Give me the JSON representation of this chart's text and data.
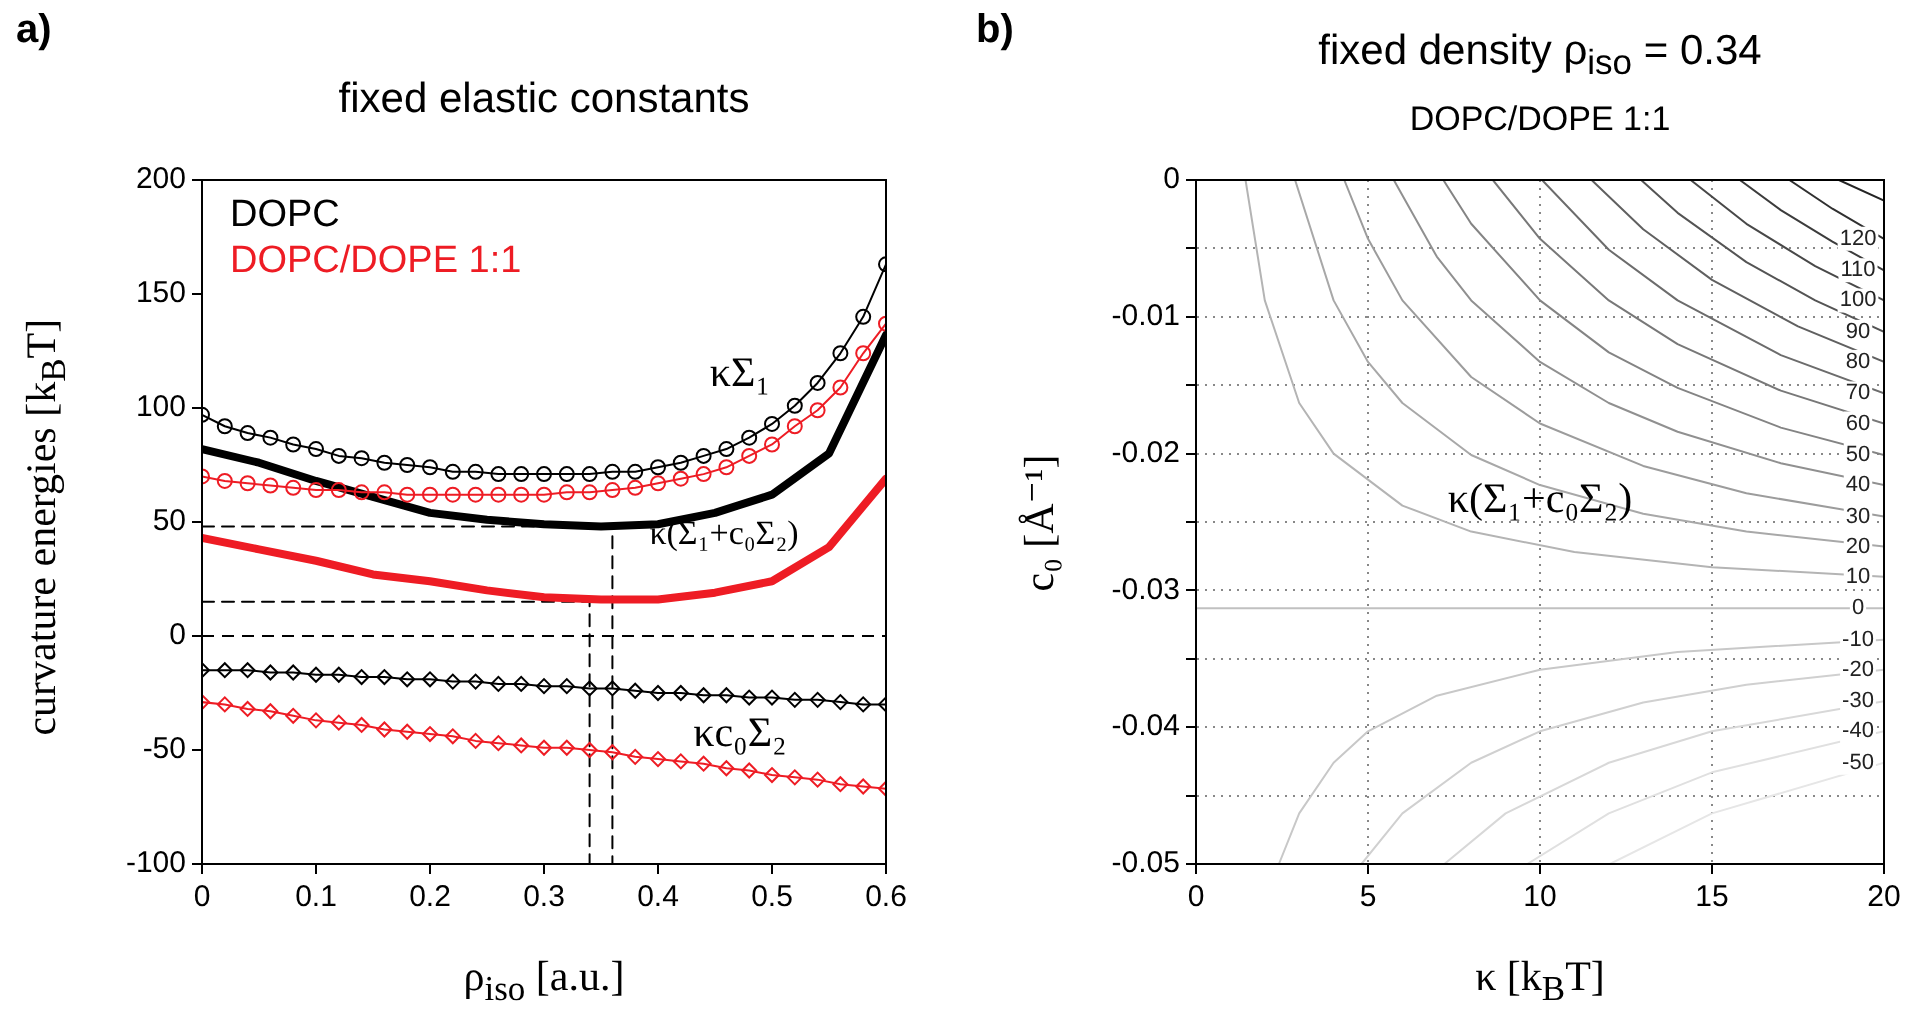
{
  "chart_data": [
    {
      "type": "line",
      "title": "fixed elastic constants",
      "xlabel": "ρ$_{iso}$ [a.u.]",
      "ylabel": "curvature energies [k$_{B}$T]",
      "annotations": [
        "a)",
        "κΣ₁",
        "κ(Σ₁+c₀Σ₂)",
        "κc₀Σ₂"
      ],
      "x": [
        0,
        0.02,
        0.04,
        0.06,
        0.08,
        0.1,
        0.12,
        0.14,
        0.16,
        0.18,
        0.2,
        0.22,
        0.24,
        0.26,
        0.28,
        0.3,
        0.32,
        0.34,
        0.36,
        0.38,
        0.4,
        0.42,
        0.44,
        0.46,
        0.48,
        0.5,
        0.52,
        0.54,
        0.56,
        0.58,
        0.6
      ],
      "series": [
        {
          "name": "DOPC",
          "color": "#000000",
          "marker": "circle",
          "line_style": "solid",
          "values": [
            97,
            92,
            89,
            87,
            84,
            82,
            79,
            78,
            76,
            75,
            74,
            72,
            72,
            71,
            71,
            71,
            71,
            71,
            72,
            72,
            74,
            76,
            79,
            82,
            87,
            93,
            101,
            111,
            124,
            140,
            163
          ]
        },
        {
          "name": "DOPC/DOPE 1:1",
          "color": "#ee1c24",
          "marker": "circle",
          "line_style": "solid",
          "values": [
            70,
            68,
            67,
            66,
            65,
            64,
            64,
            63,
            63,
            62,
            62,
            62,
            62,
            62,
            62,
            62,
            63,
            63,
            64,
            65,
            67,
            69,
            71,
            74,
            79,
            84,
            92,
            99,
            109,
            124,
            137
          ]
        },
        {
          "color": "#000000",
          "marker": "none",
          "line_style": "solid",
          "x": [
            0,
            0.05,
            0.1,
            0.15,
            0.2,
            0.25,
            0.3,
            0.35,
            0.4,
            0.45,
            0.5,
            0.55,
            0.6
          ],
          "values": [
            82,
            76,
            68,
            61,
            54,
            51,
            49,
            48,
            49,
            54,
            62,
            80,
            132
          ]
        },
        {
          "color": "#ee1c24",
          "marker": "none",
          "line_style": "solid",
          "x": [
            0,
            0.05,
            0.1,
            0.15,
            0.2,
            0.25,
            0.3,
            0.35,
            0.4,
            0.45,
            0.5,
            0.55,
            0.6
          ],
          "values": [
            43,
            38,
            33,
            27,
            24,
            20,
            17,
            16,
            16,
            19,
            24,
            39,
            69
          ]
        },
        {
          "color": "#000000",
          "marker": "diamond",
          "line_style": "solid",
          "values": [
            -15,
            -15,
            -15,
            -16,
            -16,
            -17,
            -17,
            -18,
            -18,
            -19,
            -19,
            -20,
            -20,
            -21,
            -21,
            -22,
            -22,
            -23,
            -23,
            -24,
            -25,
            -25,
            -26,
            -26,
            -27,
            -27,
            -28,
            -28,
            -29,
            -30,
            -30
          ]
        },
        {
          "color": "#ee1c24",
          "marker": "diamond",
          "line_style": "solid",
          "values": [
            -29,
            -30,
            -32,
            -33,
            -35,
            -37,
            -38,
            -39,
            -41,
            -42,
            -43,
            -44,
            -46,
            -47,
            -48,
            -49,
            -49,
            -50,
            -51,
            -53,
            -54,
            -55,
            -56,
            -58,
            -59,
            -61,
            -62,
            -63,
            -65,
            -66,
            -67
          ]
        },
        {
          "color": "#000000",
          "marker": "none",
          "line_style": "dashed",
          "x": [
            0,
            0.36,
            0.36
          ],
          "values": [
            48,
            48,
            -100
          ]
        },
        {
          "color": "#000000",
          "marker": "none",
          "line_style": "dashed",
          "x": [
            0,
            0.34,
            0.34
          ],
          "values": [
            15,
            15,
            -100
          ]
        }
      ],
      "ref_lines": [
        {
          "axis": "y",
          "value": 0,
          "color": "#000000",
          "line_style": "dashed"
        }
      ],
      "xlim": [
        0,
        0.6
      ],
      "ylim": [
        -100,
        200
      ],
      "xticks": [
        0,
        0.1,
        0.2,
        0.3,
        0.4,
        0.5,
        0.6
      ],
      "yticks": [
        -100,
        -50,
        0,
        50,
        100,
        150,
        200
      ],
      "legend": "top left"
    },
    {
      "type": "line",
      "title": "fixed density ρ$_{iso}$ = 0.34",
      "subtitle": "DOPC/DOPE 1:1",
      "xlabel": "κ [k$_{B}$T]",
      "ylabel": "c₀ [Å⁻¹]",
      "annotations": [
        "b)",
        "κ(Σ₁+c₀Σ₂)"
      ],
      "marker": "none",
      "line_style": "solid",
      "grid": true,
      "series": [
        {
          "name": "10",
          "color": "#b4b4b4",
          "x": [
            1.44,
            2,
            3,
            4,
            6,
            8,
            11,
            15,
            20
          ],
          "values": [
            0,
            -0.0088,
            -0.0163,
            -0.02,
            -0.0238,
            -0.0257,
            -0.0272,
            -0.0283,
            -0.029
          ]
        },
        {
          "name": "20",
          "color": "#a8a8a8",
          "x": [
            2.88,
            4,
            5,
            6,
            8,
            10,
            13,
            16,
            20
          ],
          "values": [
            0,
            -0.0088,
            -0.0133,
            -0.0163,
            -0.0201,
            -0.0223,
            -0.0244,
            -0.0257,
            -0.0268
          ]
        },
        {
          "name": "30",
          "color": "#9c9c9c",
          "x": [
            4.31,
            5,
            6,
            8,
            10,
            13,
            16,
            20
          ],
          "values": [
            0,
            -0.0043,
            -0.0088,
            -0.0144,
            -0.0178,
            -0.0209,
            -0.0229,
            -0.0246
          ]
        },
        {
          "name": "40",
          "color": "#909090",
          "x": [
            5.75,
            7,
            8,
            10,
            12,
            14,
            17,
            20
          ],
          "values": [
            0,
            -0.0056,
            -0.0088,
            -0.0133,
            -0.0163,
            -0.0184,
            -0.0207,
            -0.0223
          ]
        },
        {
          "name": "50",
          "color": "#848484",
          "x": [
            7.19,
            8,
            10,
            12,
            14,
            17,
            20
          ],
          "values": [
            0,
            -0.0032,
            -0.0088,
            -0.0126,
            -0.0152,
            -0.0181,
            -0.0201
          ]
        },
        {
          "name": "60",
          "color": "#787878",
          "x": [
            8.63,
            10,
            12,
            14,
            17,
            20
          ],
          "values": [
            0,
            -0.0043,
            -0.0088,
            -0.012,
            -0.0154,
            -0.0178
          ]
        },
        {
          "name": "70",
          "color": "#6c6c6c",
          "x": [
            10.06,
            12,
            14,
            17,
            20
          ],
          "values": [
            0,
            -0.0051,
            -0.0088,
            -0.0128,
            -0.0156
          ]
        },
        {
          "name": "80",
          "color": "#606060",
          "x": [
            11.5,
            13,
            15,
            17.5,
            20
          ],
          "values": [
            0,
            -0.0036,
            -0.0073,
            -0.0107,
            -0.0133
          ]
        },
        {
          "name": "90",
          "color": "#545454",
          "x": [
            12.94,
            14,
            16,
            18,
            20
          ],
          "values": [
            0,
            -0.0024,
            -0.006,
            -0.0088,
            -0.0111
          ]
        },
        {
          "name": "100",
          "color": "#484848",
          "x": [
            14.38,
            16,
            18,
            20
          ],
          "values": [
            0,
            -0.0032,
            -0.0063,
            -0.0088
          ]
        },
        {
          "name": "110",
          "color": "#3c3c3c",
          "x": [
            15.81,
            17,
            18.5,
            20
          ],
          "values": [
            0,
            -0.0022,
            -0.0045,
            -0.0066
          ]
        },
        {
          "name": "120",
          "color": "#303030",
          "x": [
            17.25,
            18.5,
            20
          ],
          "values": [
            0,
            -0.0021,
            -0.0043
          ]
        },
        {
          "color": "#242424",
          "x": [
            18.69,
            20
          ],
          "values": [
            0,
            -0.0015
          ]
        },
        {
          "name": "0",
          "color": "#c0c0c0",
          "x": [
            0,
            20
          ],
          "values": [
            -0.0313,
            -0.0313
          ]
        },
        {
          "name": "-10",
          "color": "#c8c8c8",
          "x": [
            2.41,
            3,
            4,
            5,
            7,
            10,
            14,
            20
          ],
          "values": [
            -0.05,
            -0.0463,
            -0.0426,
            -0.0403,
            -0.0377,
            -0.0358,
            -0.0345,
            -0.0336
          ]
        },
        {
          "name": "-20",
          "color": "#d0d0d0",
          "x": [
            4.81,
            6,
            8,
            10,
            13,
            16,
            20
          ],
          "values": [
            -0.05,
            -0.0463,
            -0.0426,
            -0.0403,
            -0.0382,
            -0.0369,
            -0.0358
          ]
        },
        {
          "name": "-30",
          "color": "#d8d8d8",
          "x": [
            7.22,
            9,
            12,
            15,
            20
          ],
          "values": [
            -0.05,
            -0.0463,
            -0.0426,
            -0.0403,
            -0.0381
          ]
        },
        {
          "name": "-40",
          "color": "#e0e0e0",
          "x": [
            9.63,
            12,
            15,
            20
          ],
          "values": [
            -0.05,
            -0.0463,
            -0.0433,
            -0.0403
          ]
        },
        {
          "name": "-50",
          "color": "#e6e6e6",
          "x": [
            12.03,
            15,
            20
          ],
          "values": [
            -0.05,
            -0.0463,
            -0.0426
          ]
        }
      ],
      "xlim": [
        0,
        20
      ],
      "ylim": [
        -0.05,
        0
      ],
      "xticks": [
        0,
        5,
        10,
        15,
        20
      ],
      "yticks": [
        -0.05,
        {
          "value": -0.045,
          "label": null
        },
        -0.04,
        {
          "value": -0.035,
          "label": null
        },
        -0.03,
        {
          "value": -0.025,
          "label": null
        },
        -0.02,
        {
          "value": -0.015,
          "label": null
        },
        -0.01,
        {
          "value": -0.005,
          "label": null
        },
        0
      ]
    }
  ]
}
